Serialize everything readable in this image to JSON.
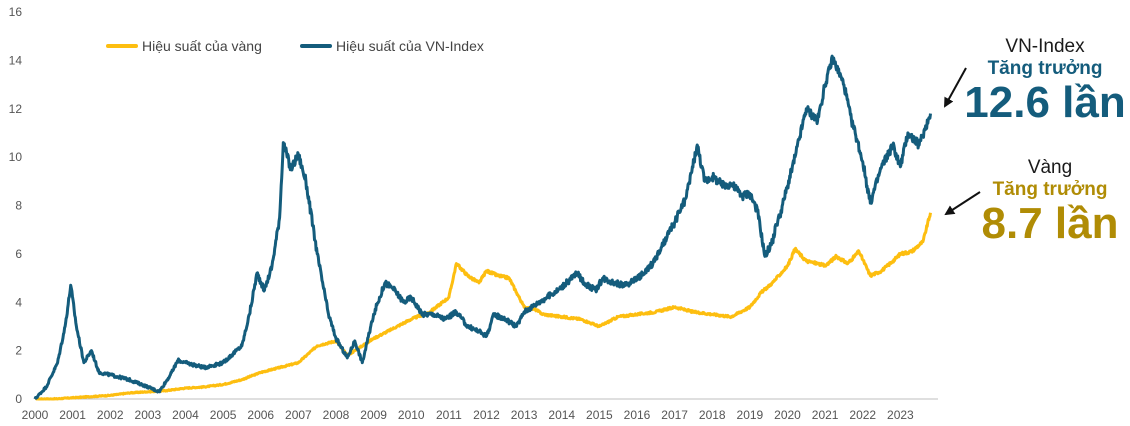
{
  "chart_data": {
    "type": "line",
    "title": "",
    "xlabel": "",
    "ylabel": "",
    "xlim": [
      2000,
      2024
    ],
    "ylim": [
      0,
      16
    ],
    "x_ticks": [
      "2000",
      "2001",
      "2002",
      "2003",
      "2004",
      "2005",
      "2006",
      "2007",
      "2008",
      "2009",
      "2010",
      "2011",
      "2012",
      "2013",
      "2014",
      "2015",
      "2016",
      "2017",
      "2018",
      "2019",
      "2020",
      "2021",
      "2022",
      "2023"
    ],
    "y_ticks": [
      "0",
      "2",
      "4",
      "6",
      "8",
      "10",
      "12",
      "14",
      "16"
    ],
    "grid": false,
    "legend_position": "top-left",
    "series": [
      {
        "name": "Hiệu suất của vàng",
        "color": "#FDBE10",
        "x": [
          2000.0,
          2000.5,
          2001.0,
          2001.5,
          2002.0,
          2002.5,
          2003.0,
          2003.5,
          2004.0,
          2004.5,
          2005.0,
          2005.5,
          2006.0,
          2006.5,
          2007.0,
          2007.5,
          2008.0,
          2008.3,
          2008.6,
          2009.0,
          2009.5,
          2010.0,
          2010.5,
          2011.0,
          2011.2,
          2011.5,
          2011.8,
          2012.0,
          2012.3,
          2012.6,
          2012.8,
          2013.0,
          2013.3,
          2013.5,
          2014.0,
          2014.5,
          2015.0,
          2015.5,
          2016.0,
          2016.5,
          2017.0,
          2017.5,
          2018.0,
          2018.5,
          2019.0,
          2019.3,
          2019.6,
          2020.0,
          2020.2,
          2020.5,
          2020.8,
          2021.0,
          2021.3,
          2021.6,
          2021.9,
          2022.2,
          2022.5,
          2022.8,
          2023.0,
          2023.3,
          2023.6,
          2023.8
        ],
        "y": [
          0.0,
          0.0,
          0.05,
          0.1,
          0.15,
          0.25,
          0.3,
          0.35,
          0.45,
          0.5,
          0.6,
          0.8,
          1.1,
          1.3,
          1.5,
          2.2,
          2.4,
          1.8,
          2.1,
          2.5,
          2.9,
          3.3,
          3.6,
          4.2,
          5.6,
          5.1,
          4.8,
          5.3,
          5.1,
          5.0,
          4.4,
          3.8,
          3.7,
          3.5,
          3.4,
          3.3,
          3.0,
          3.4,
          3.5,
          3.6,
          3.8,
          3.6,
          3.5,
          3.4,
          3.8,
          4.4,
          4.8,
          5.5,
          6.2,
          5.7,
          5.6,
          5.5,
          5.9,
          5.6,
          6.1,
          5.1,
          5.3,
          5.7,
          6.0,
          6.1,
          6.5,
          7.7
        ]
      },
      {
        "name": "Hiệu suất của VN-Index",
        "color": "#145C7C",
        "x": [
          2000.0,
          2000.3,
          2000.6,
          2000.8,
          2000.95,
          2001.1,
          2001.3,
          2001.5,
          2001.7,
          2002.0,
          2002.5,
          2003.0,
          2003.3,
          2003.6,
          2003.8,
          2004.0,
          2004.5,
          2005.0,
          2005.5,
          2005.7,
          2005.9,
          2006.1,
          2006.3,
          2006.5,
          2006.6,
          2006.8,
          2007.0,
          2007.2,
          2007.5,
          2007.8,
          2008.0,
          2008.3,
          2008.5,
          2008.7,
          2009.0,
          2009.3,
          2009.5,
          2009.8,
          2010.0,
          2010.3,
          2010.6,
          2010.9,
          2011.2,
          2011.5,
          2011.8,
          2012.0,
          2012.2,
          2012.5,
          2012.8,
          2013.0,
          2013.3,
          2013.6,
          2013.9,
          2014.2,
          2014.4,
          2014.6,
          2014.9,
          2015.1,
          2015.4,
          2015.7,
          2015.9,
          2016.2,
          2016.5,
          2016.8,
          2017.0,
          2017.3,
          2017.6,
          2017.8,
          2018.0,
          2018.3,
          2018.5,
          2018.8,
          2019.0,
          2019.2,
          2019.4,
          2019.6,
          2019.7,
          2019.8,
          2020.0,
          2020.2,
          2020.5,
          2020.8,
          2021.0,
          2021.2,
          2021.5,
          2021.7,
          2021.8,
          2022.0,
          2022.2,
          2022.5,
          2022.8,
          2023.0,
          2023.2,
          2023.5,
          2023.8
        ],
        "y": [
          0.0,
          0.5,
          1.5,
          3.0,
          4.7,
          3.0,
          1.5,
          2.0,
          1.1,
          1.0,
          0.8,
          0.5,
          0.3,
          1.0,
          1.6,
          1.5,
          1.3,
          1.5,
          2.2,
          3.5,
          5.2,
          4.5,
          5.5,
          7.5,
          10.6,
          9.5,
          10.1,
          9.0,
          6.0,
          3.5,
          2.5,
          1.7,
          2.4,
          1.5,
          3.5,
          4.8,
          4.6,
          4.0,
          4.2,
          3.5,
          3.5,
          3.3,
          3.6,
          3.0,
          2.8,
          2.6,
          3.5,
          3.3,
          3.0,
          3.6,
          3.9,
          4.2,
          4.5,
          4.9,
          5.2,
          4.8,
          4.5,
          5.0,
          4.8,
          4.7,
          4.9,
          5.2,
          5.8,
          6.7,
          7.3,
          8.3,
          10.5,
          9.0,
          9.2,
          8.8,
          8.9,
          8.4,
          8.5,
          7.8,
          5.9,
          6.5,
          7.2,
          7.6,
          8.8,
          10.0,
          12.0,
          11.5,
          13.0,
          14.1,
          13.0,
          11.5,
          11.0,
          9.8,
          8.1,
          9.6,
          10.5,
          9.6,
          11.0,
          10.5,
          11.8
        ]
      }
    ],
    "annotations": [
      {
        "name": "VN-Index",
        "subtitle": "Tăng trưởng",
        "value": "12.6 lần",
        "name_color": "#1a1a1a",
        "color": "#145C7C"
      },
      {
        "name": "Vàng",
        "subtitle": "Tăng trưởng",
        "value": "8.7 lần",
        "name_color": "#1a1a1a",
        "color": "#B08C05"
      }
    ]
  }
}
